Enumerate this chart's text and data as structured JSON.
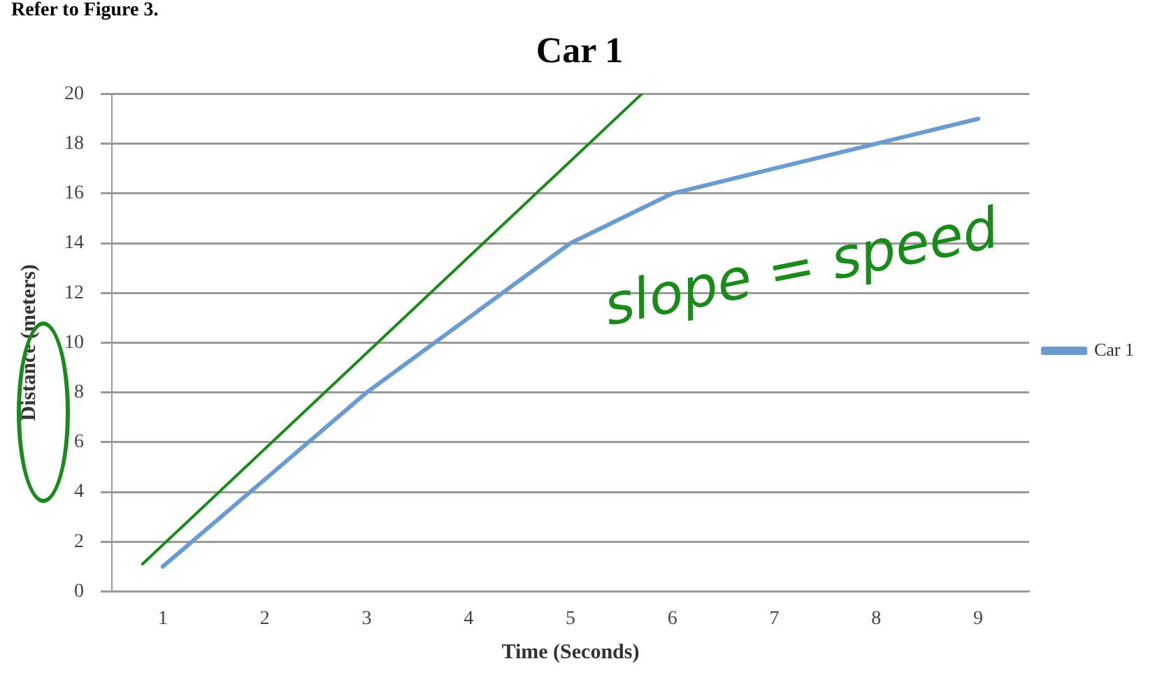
{
  "chart_data": {
    "type": "line",
    "title": "Car 1",
    "xlabel": "Time (Seconds)",
    "ylabel": "Distance (meters)",
    "x": [
      1,
      2,
      3,
      4,
      5,
      6,
      7,
      8,
      9
    ],
    "xlim": [
      0.5,
      9.5
    ],
    "xticks": [
      1,
      2,
      3,
      4,
      5,
      6,
      7,
      8,
      9
    ],
    "ylim": [
      0,
      20
    ],
    "yticks": [
      0,
      2,
      4,
      6,
      8,
      10,
      12,
      14,
      16,
      18,
      20
    ],
    "series": [
      {
        "name": "Car 1",
        "color": "#6a9bd1",
        "values": [
          1,
          4.5,
          8,
          11,
          14,
          16,
          17,
          18,
          19
        ]
      },
      {
        "type": "line",
        "color": "#1a8a1a",
        "x": [
          0.8,
          5.7
        ],
        "values": [
          1.1,
          20
        ]
      }
    ],
    "grid": "y",
    "legend": "right",
    "marker": "none",
    "line_style": "solid",
    "annotations": [
      "Refer to Figure 3.",
      "slope = speed"
    ]
  }
}
